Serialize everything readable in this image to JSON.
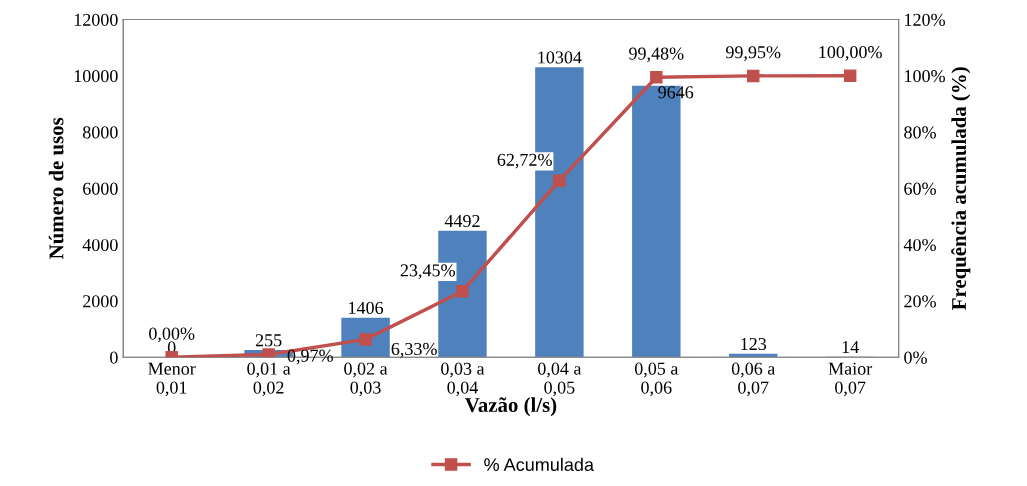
{
  "chart_data": {
    "type": "bar",
    "xlabel": "Vazão (l/s)",
    "ylabel": "Número de usos",
    "y2label": "Frequência acumulada (%)",
    "categories": [
      "Menor\n0,01",
      "0,01 a\n0,02",
      "0,02 a\n0,03",
      "0,03 a\n0,04",
      "0,04 a\n0,05",
      "0,05 a\n0,06",
      "0,06 a\n0,07",
      "Maior\n0,07"
    ],
    "series": [
      {
        "color": "#4f81bd",
        "values": [
          0,
          255,
          1406,
          4492,
          10304,
          9646,
          123,
          14
        ],
        "value_labels": [
          "0",
          "255",
          "1406",
          "4492",
          "10304",
          "9646",
          "123",
          "14"
        ]
      },
      {
        "type": "line",
        "name": "% Acumulada",
        "axis": "y2",
        "color": "#c0504d",
        "marker": "square",
        "values": [
          0,
          0.97,
          6.33,
          23.45,
          62.72,
          99.48,
          99.95,
          100
        ],
        "value_labels": [
          "0,00%",
          "0,97%",
          "6,33%",
          "23,45%",
          "62,72%",
          "99,48%",
          "99,95%",
          "100,00%"
        ]
      }
    ],
    "ylim": [
      0,
      12000
    ],
    "yticks": [
      0,
      2000,
      4000,
      6000,
      8000,
      10000,
      12000
    ],
    "y2lim": [
      0,
      120
    ],
    "y2ticks": [
      {
        "value": 0,
        "label": "0%"
      },
      {
        "value": 20,
        "label": "20%"
      },
      {
        "value": 40,
        "label": "40%"
      },
      {
        "value": 60,
        "label": "60%"
      },
      {
        "value": 80,
        "label": "80%"
      },
      {
        "value": 100,
        "label": "100%"
      },
      {
        "value": 120,
        "label": "120%"
      }
    ],
    "grid": false,
    "legend": "bottom"
  }
}
